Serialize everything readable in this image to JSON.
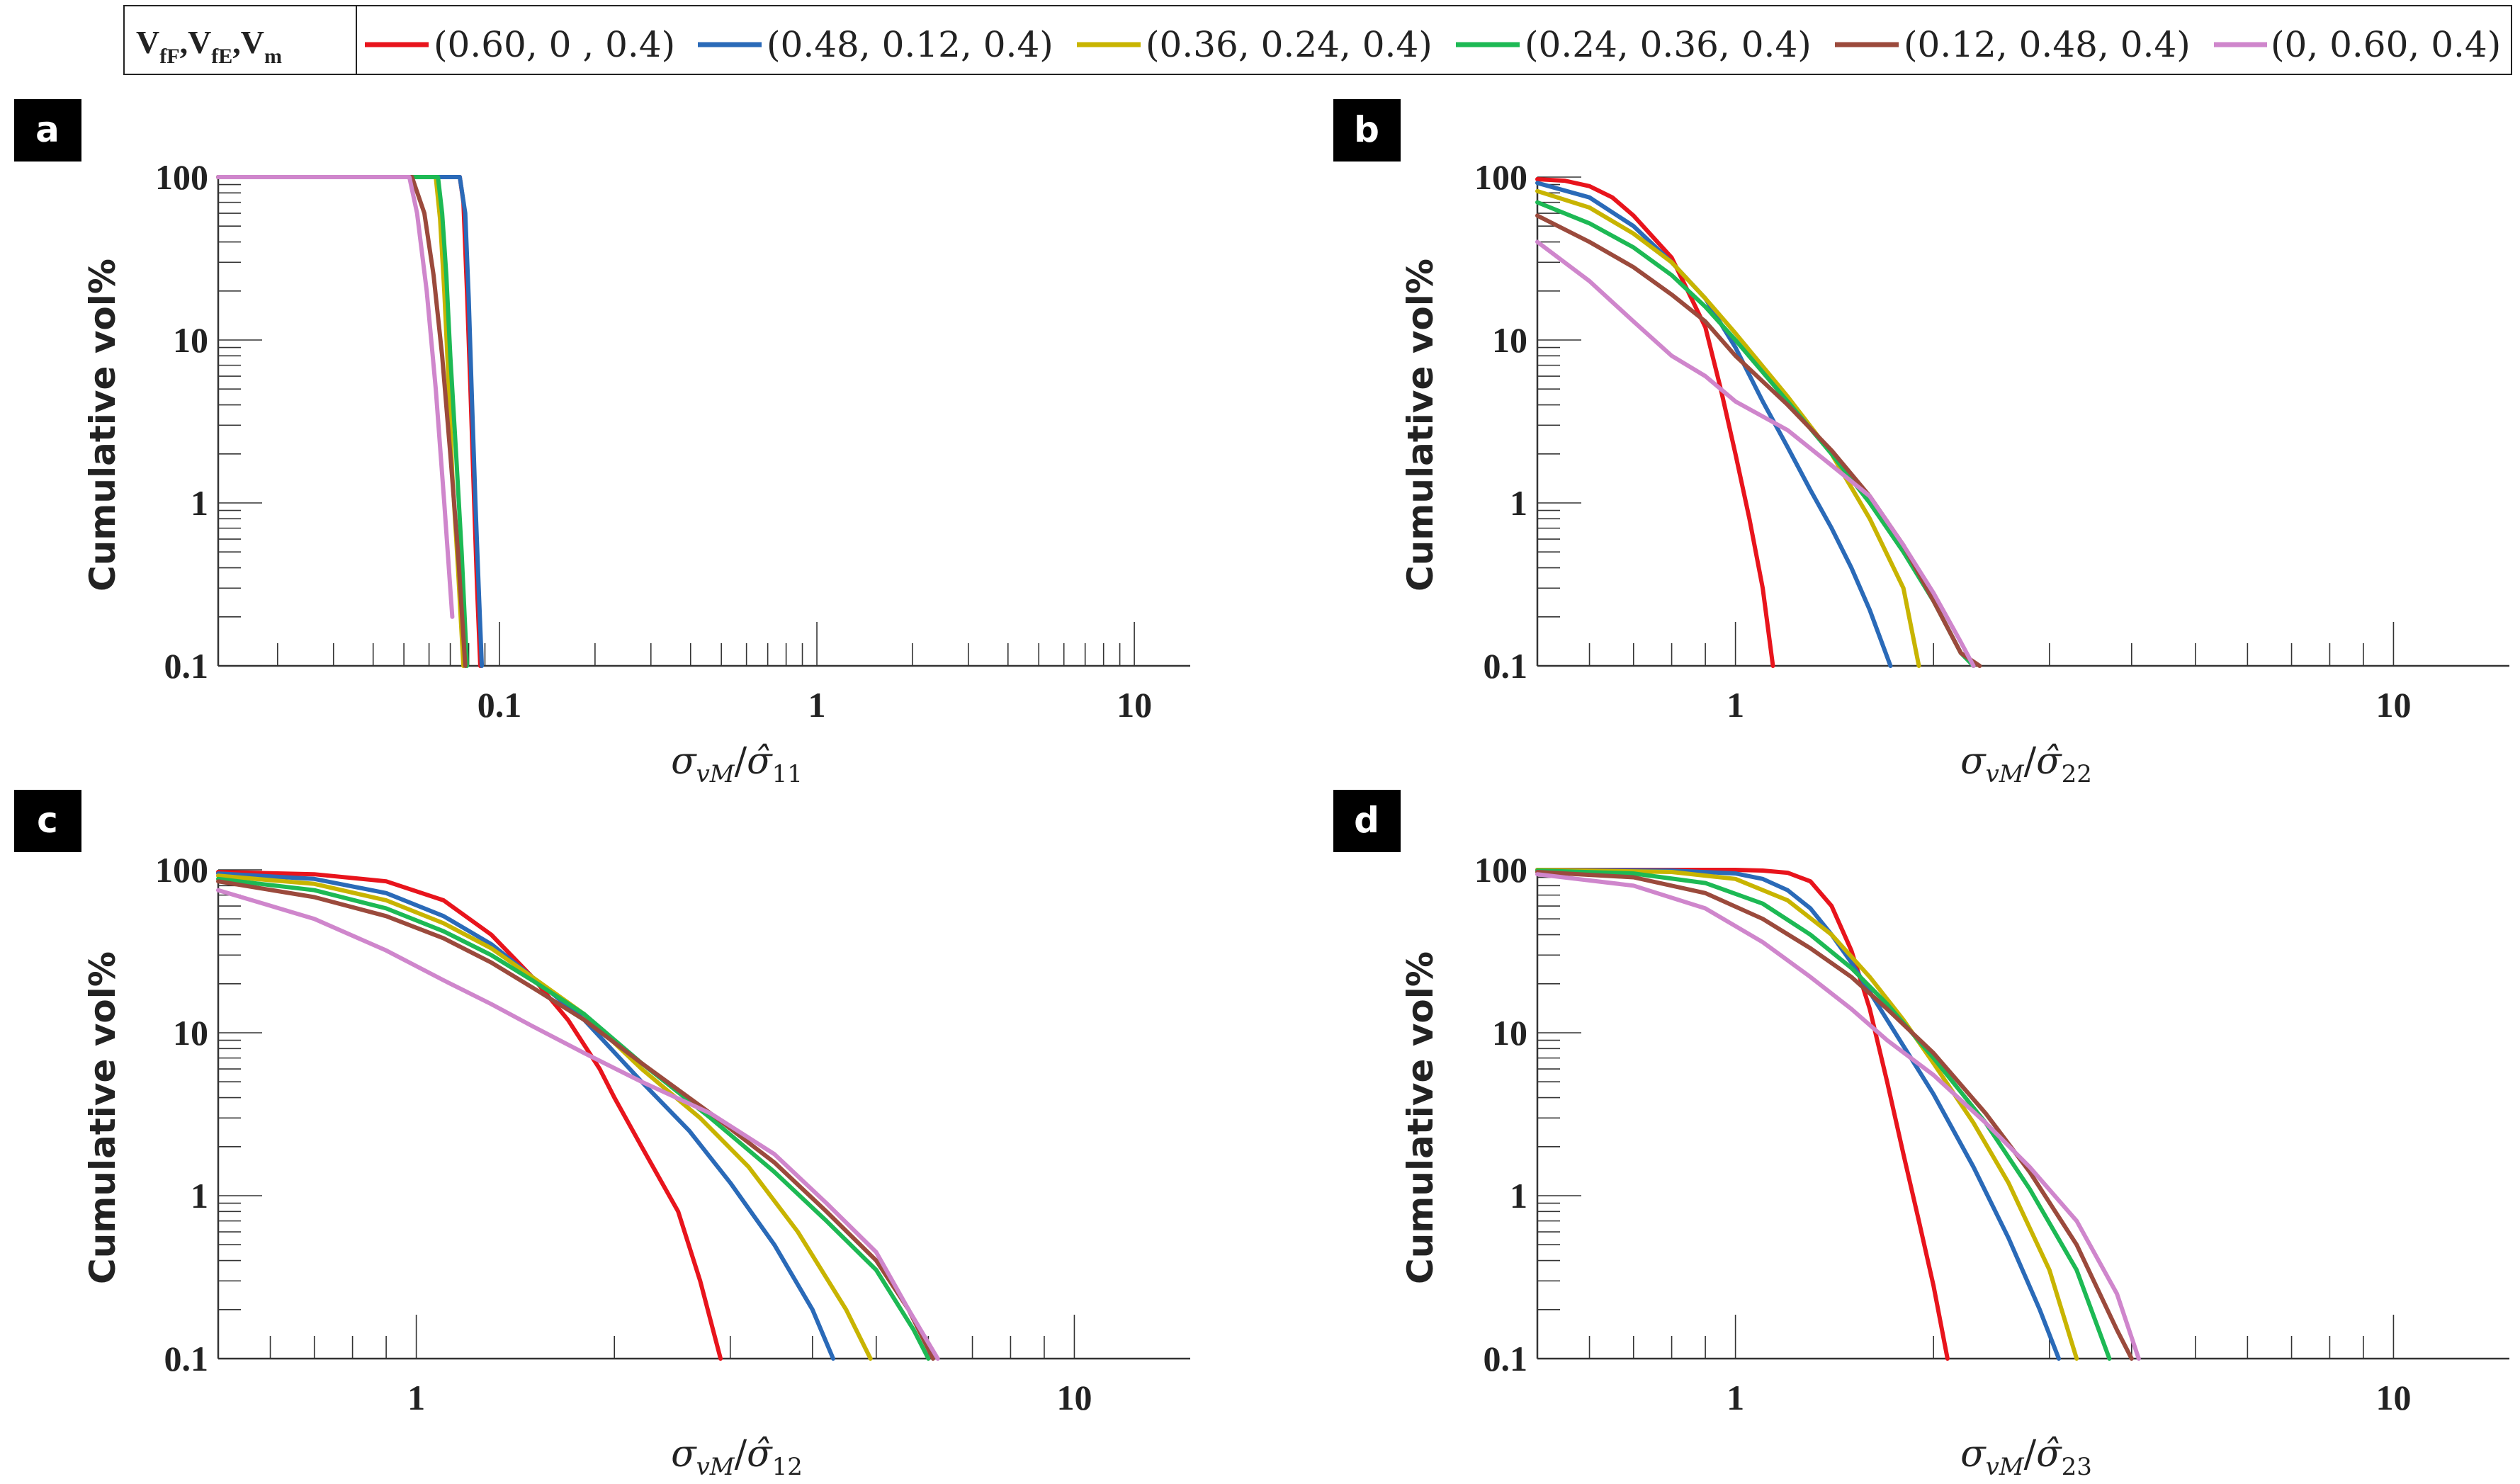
{
  "colors": {
    "axis": "#333333",
    "text": "#222222",
    "series": [
      "#e8141c",
      "#2a6ab8",
      "#c8b400",
      "#1db954",
      "#9b4a3c",
      "#cf86cc"
    ]
  },
  "legend": {
    "header_parts": [
      "V",
      "fF",
      ",V",
      "fE",
      ",V",
      "m"
    ],
    "entries": [
      "(0.60, 0 , 0.4)",
      "(0.48, 0.12, 0.4)",
      "(0.36, 0.24, 0.4)",
      "(0.24, 0.36, 0.4)",
      "(0.12, 0.48, 0.4)",
      "(0, 0.60, 0.4)"
    ]
  },
  "chart_data": [
    {
      "type": "line",
      "panel": "a",
      "title": "",
      "xscale": "log",
      "yscale": "log",
      "xlim": [
        0.013,
        15
      ],
      "ylim": [
        0.1,
        100
      ],
      "xticks": [
        0.1,
        1,
        10
      ],
      "xtick_labels": [
        "0.1",
        "1",
        "10"
      ],
      "yticks": [
        0.1,
        1,
        10,
        100
      ],
      "ytick_labels": [
        "0.1",
        "1",
        "10",
        "100"
      ],
      "ylabel": "Cumulative vol%",
      "xlabel_parts": [
        "σ",
        "vM",
        "/",
        "σ̂",
        "11"
      ],
      "series": [
        {
          "name": "(0.60, 0 , 0.4)",
          "x": [
            0.013,
            0.075,
            0.077,
            0.079,
            0.081,
            0.083,
            0.085,
            0.087
          ],
          "y": [
            100,
            100,
            70,
            20,
            5,
            1.2,
            0.3,
            0.1
          ]
        },
        {
          "name": "(0.48, 0.12, 0.4)",
          "x": [
            0.013,
            0.075,
            0.078,
            0.08,
            0.082,
            0.084,
            0.086,
            0.088
          ],
          "y": [
            100,
            100,
            60,
            18,
            4,
            1,
            0.3,
            0.1
          ]
        },
        {
          "name": "(0.36, 0.24, 0.4)",
          "x": [
            0.013,
            0.063,
            0.065,
            0.067,
            0.069,
            0.071,
            0.074,
            0.077
          ],
          "y": [
            100,
            100,
            55,
            20,
            6,
            1.5,
            0.4,
            0.1
          ]
        },
        {
          "name": "(0.24, 0.36, 0.4)",
          "x": [
            0.013,
            0.064,
            0.066,
            0.068,
            0.07,
            0.073,
            0.076,
            0.079
          ],
          "y": [
            100,
            100,
            60,
            25,
            8,
            2,
            0.5,
            0.1
          ]
        },
        {
          "name": "(0.12, 0.48, 0.4)",
          "x": [
            0.013,
            0.053,
            0.058,
            0.062,
            0.066,
            0.07,
            0.074,
            0.078
          ],
          "y": [
            100,
            100,
            60,
            25,
            8,
            2,
            0.5,
            0.1
          ]
        },
        {
          "name": "(0, 0.60, 0.4)",
          "x": [
            0.013,
            0.052,
            0.055,
            0.059,
            0.063,
            0.067,
            0.071
          ],
          "y": [
            100,
            100,
            60,
            20,
            5,
            1,
            0.2
          ]
        }
      ]
    },
    {
      "type": "line",
      "panel": "b",
      "title": "",
      "xscale": "log",
      "yscale": "log",
      "xlim": [
        0.5,
        15
      ],
      "ylim": [
        0.1,
        100
      ],
      "xticks": [
        1,
        10
      ],
      "xtick_labels": [
        "1",
        "10"
      ],
      "yticks": [
        0.1,
        1,
        10,
        100
      ],
      "ytick_labels": [
        "0.1",
        "1",
        "10",
        "100"
      ],
      "ylabel": "Cumulative vol%",
      "xlabel_parts": [
        "σ",
        "vM",
        "/",
        "σ̂",
        "22"
      ],
      "series": [
        {
          "name": "(0.60, 0 , 0.4)",
          "x": [
            0.5,
            0.55,
            0.6,
            0.65,
            0.7,
            0.8,
            0.9,
            0.95,
            1.0,
            1.05,
            1.1,
            1.14
          ],
          "y": [
            97,
            95,
            88,
            75,
            58,
            32,
            12,
            5,
            2,
            0.8,
            0.3,
            0.1
          ]
        },
        {
          "name": "(0.48, 0.12, 0.4)",
          "x": [
            0.5,
            0.6,
            0.7,
            0.8,
            0.9,
            1.0,
            1.1,
            1.2,
            1.3,
            1.4,
            1.5,
            1.6,
            1.72
          ],
          "y": [
            92,
            75,
            50,
            30,
            18,
            9,
            4.2,
            2.2,
            1.2,
            0.7,
            0.4,
            0.22,
            0.1
          ]
        },
        {
          "name": "(0.36, 0.24, 0.4)",
          "x": [
            0.5,
            0.6,
            0.7,
            0.8,
            0.9,
            1.0,
            1.2,
            1.4,
            1.6,
            1.8,
            1.9
          ],
          "y": [
            82,
            65,
            45,
            30,
            18,
            11,
            4.5,
            2,
            0.8,
            0.3,
            0.1
          ]
        },
        {
          "name": "(0.24, 0.36, 0.4)",
          "x": [
            0.5,
            0.6,
            0.7,
            0.8,
            0.9,
            1.0,
            1.2,
            1.4,
            1.6,
            1.8,
            2.0,
            2.2,
            2.3
          ],
          "y": [
            70,
            52,
            37,
            25,
            16,
            10,
            4.2,
            2,
            1,
            0.5,
            0.25,
            0.12,
            0.1
          ]
        },
        {
          "name": "(0.12, 0.48, 0.4)",
          "x": [
            0.5,
            0.6,
            0.7,
            0.8,
            0.9,
            1.0,
            1.2,
            1.4,
            1.6,
            1.8,
            2.0,
            2.2,
            2.35
          ],
          "y": [
            58,
            40,
            28,
            19,
            13,
            8,
            4,
            2.1,
            1.1,
            0.55,
            0.25,
            0.12,
            0.1
          ]
        },
        {
          "name": "(0, 0.60, 0.4)",
          "x": [
            0.5,
            0.6,
            0.7,
            0.8,
            0.9,
            1.0,
            1.2,
            1.4,
            1.6,
            1.8,
            2.0,
            2.2,
            2.3
          ],
          "y": [
            40,
            23,
            13,
            8,
            6,
            4.2,
            2.8,
            1.7,
            1.1,
            0.55,
            0.28,
            0.14,
            0.1
          ]
        }
      ]
    },
    {
      "type": "line",
      "panel": "c",
      "title": "",
      "xscale": "log",
      "yscale": "log",
      "xlim": [
        0.5,
        15
      ],
      "ylim": [
        0.1,
        100
      ],
      "xticks": [
        1,
        10
      ],
      "xtick_labels": [
        "1",
        "10"
      ],
      "yticks": [
        0.1,
        1,
        10,
        100
      ],
      "ytick_labels": [
        "0.1",
        "1",
        "10",
        "100"
      ],
      "ylabel": "Cumulative vol%",
      "xlabel_parts": [
        "σ",
        "vM",
        "/",
        "σ̂",
        "12"
      ],
      "series": [
        {
          "name": "(0.60, 0 , 0.4)",
          "x": [
            0.5,
            0.7,
            0.9,
            1.1,
            1.3,
            1.5,
            1.7,
            1.9,
            2.0,
            2.2,
            2.5,
            2.7,
            2.9
          ],
          "y": [
            97,
            94,
            85,
            65,
            40,
            22,
            12,
            6,
            4,
            2,
            0.8,
            0.3,
            0.1
          ]
        },
        {
          "name": "(0.48, 0.12, 0.4)",
          "x": [
            0.5,
            0.7,
            0.9,
            1.1,
            1.3,
            1.5,
            1.8,
            2.2,
            2.6,
            3.0,
            3.5,
            4.0,
            4.3
          ],
          "y": [
            95,
            88,
            72,
            52,
            35,
            22,
            12,
            5,
            2.5,
            1.2,
            0.5,
            0.2,
            0.1
          ]
        },
        {
          "name": "(0.36, 0.24, 0.4)",
          "x": [
            0.5,
            0.7,
            0.9,
            1.1,
            1.3,
            1.5,
            1.8,
            2.2,
            2.7,
            3.2,
            3.8,
            4.5,
            4.9
          ],
          "y": [
            92,
            82,
            65,
            47,
            33,
            22,
            13,
            6,
            3,
            1.5,
            0.6,
            0.2,
            0.1
          ]
        },
        {
          "name": "(0.24, 0.36, 0.4)",
          "x": [
            0.5,
            0.7,
            0.9,
            1.1,
            1.3,
            1.5,
            1.8,
            2.2,
            2.8,
            3.5,
            4.2,
            5.0,
            5.7,
            6.0
          ],
          "y": [
            88,
            75,
            58,
            42,
            30,
            21,
            13,
            6.5,
            3,
            1.4,
            0.7,
            0.35,
            0.15,
            0.1
          ]
        },
        {
          "name": "(0.12, 0.48, 0.4)",
          "x": [
            0.5,
            0.7,
            0.9,
            1.1,
            1.3,
            1.5,
            1.8,
            2.2,
            2.8,
            3.5,
            4.2,
            5.0,
            5.6,
            6.1
          ],
          "y": [
            85,
            68,
            52,
            38,
            27,
            19,
            12,
            6.5,
            3.2,
            1.6,
            0.8,
            0.4,
            0.2,
            0.1
          ]
        },
        {
          "name": "(0, 0.60, 0.4)",
          "x": [
            0.5,
            0.7,
            0.9,
            1.1,
            1.3,
            1.5,
            1.8,
            2.2,
            2.8,
            3.5,
            4.2,
            5.0,
            5.6,
            6.2
          ],
          "y": [
            75,
            50,
            32,
            21,
            15,
            11,
            7.5,
            5,
            3.2,
            1.8,
            0.9,
            0.45,
            0.2,
            0.1
          ]
        }
      ]
    },
    {
      "type": "line",
      "panel": "d",
      "title": "",
      "xscale": "log",
      "yscale": "log",
      "xlim": [
        0.5,
        15
      ],
      "ylim": [
        0.1,
        100
      ],
      "xticks": [
        1,
        10
      ],
      "xtick_labels": [
        "1",
        "10"
      ],
      "yticks": [
        0.1,
        1,
        10,
        100
      ],
      "ytick_labels": [
        "0.1",
        "1",
        "10",
        "100"
      ],
      "ylabel": "Cumulative vol%",
      "xlabel_parts": [
        "σ",
        "vM",
        "/",
        "σ̂",
        "23"
      ],
      "series": [
        {
          "name": "(0.60, 0 , 0.4)",
          "x": [
            0.5,
            0.8,
            1.0,
            1.1,
            1.2,
            1.3,
            1.4,
            1.5,
            1.6,
            1.7,
            1.8,
            1.9,
            2.0,
            2.1
          ],
          "y": [
            100,
            100,
            100,
            99,
            96,
            85,
            60,
            32,
            14,
            5,
            1.8,
            0.7,
            0.28,
            0.1
          ]
        },
        {
          "name": "(0.48, 0.12, 0.4)",
          "x": [
            0.5,
            0.8,
            1.0,
            1.1,
            1.2,
            1.3,
            1.4,
            1.5,
            1.7,
            2.0,
            2.3,
            2.6,
            2.9,
            3.1
          ],
          "y": [
            100,
            99,
            95,
            88,
            75,
            58,
            40,
            27,
            12,
            4.2,
            1.5,
            0.55,
            0.2,
            0.1
          ]
        },
        {
          "name": "(0.36, 0.24, 0.4)",
          "x": [
            0.5,
            0.8,
            1.0,
            1.2,
            1.4,
            1.6,
            1.8,
            2.0,
            2.3,
            2.6,
            3.0,
            3.3
          ],
          "y": [
            100,
            97,
            88,
            65,
            40,
            22,
            12,
            6.5,
            2.8,
            1.2,
            0.35,
            0.1
          ]
        },
        {
          "name": "(0.24, 0.36, 0.4)",
          "x": [
            0.5,
            0.7,
            0.9,
            1.1,
            1.3,
            1.5,
            1.7,
            2.0,
            2.4,
            2.8,
            3.3,
            3.7
          ],
          "y": [
            99,
            95,
            83,
            62,
            40,
            25,
            15,
            7,
            2.8,
            1.1,
            0.35,
            0.1
          ]
        },
        {
          "name": "(0.12, 0.48, 0.4)",
          "x": [
            0.5,
            0.7,
            0.9,
            1.1,
            1.3,
            1.5,
            1.7,
            2.0,
            2.4,
            2.8,
            3.3,
            3.8,
            4.0
          ],
          "y": [
            97,
            90,
            72,
            50,
            33,
            22,
            14,
            7.5,
            3.2,
            1.4,
            0.5,
            0.15,
            0.1
          ]
        },
        {
          "name": "(0, 0.60, 0.4)",
          "x": [
            0.5,
            0.7,
            0.9,
            1.1,
            1.3,
            1.5,
            1.7,
            2.0,
            2.4,
            2.8,
            3.3,
            3.8,
            4.1
          ],
          "y": [
            94,
            80,
            58,
            36,
            22,
            14,
            9,
            5.5,
            2.8,
            1.5,
            0.7,
            0.25,
            0.1
          ]
        }
      ]
    }
  ]
}
